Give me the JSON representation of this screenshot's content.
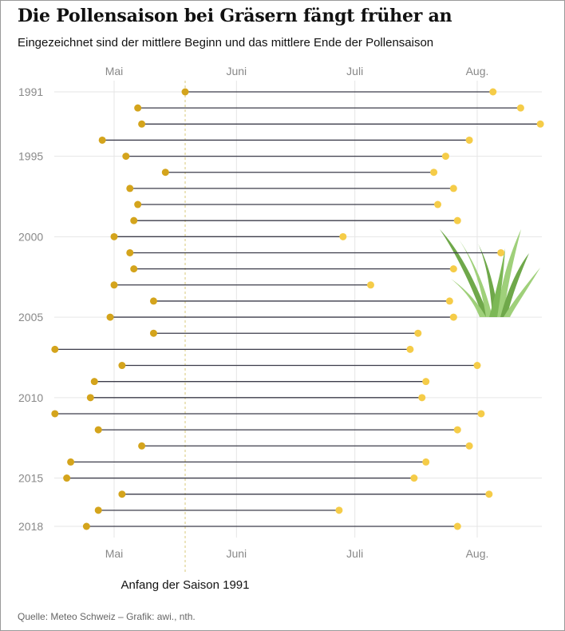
{
  "title": "Die Pollensaison bei Gräsern fängt früher an",
  "subtitle": "Eingezeichnet sind der mittlere Beginn und das mittlere Ende der Pollensaison",
  "source": "Quelle: Meteo Schweiz – Grafik: awi., nth.",
  "colors": {
    "start_dot": "#d4a41c",
    "end_dot": "#f5cc48",
    "line": "#3c3c4a",
    "grid": "#e6e6e6",
    "annotation_line": "#d9c97a",
    "grass_dark": "#6fa84a",
    "grass_light": "#9fd07a"
  },
  "icons": {
    "decoration": "grass-icon"
  },
  "chart_data": {
    "type": "dumbbell",
    "x_tick_labels": [
      "Mai",
      "Juni",
      "Juli",
      "Aug."
    ],
    "x_tick_dates": [
      "05-01",
      "06-01",
      "07-01",
      "08-01"
    ],
    "y_tick_labels": [
      "1991",
      "1995",
      "2000",
      "2005",
      "2010",
      "2015",
      "2018"
    ],
    "xlim": [
      "04-16",
      "08-17"
    ],
    "years": [
      1991,
      1992,
      1993,
      1994,
      1995,
      1996,
      1997,
      1998,
      1999,
      2000,
      2001,
      2002,
      2003,
      2004,
      2005,
      2006,
      2007,
      2008,
      2009,
      2010,
      2011,
      2012,
      2013,
      2014,
      2015,
      2016,
      2017,
      2018
    ],
    "start": [
      "05-19",
      "05-07",
      "05-08",
      "04-28",
      "05-04",
      "05-14",
      "05-05",
      "05-07",
      "05-06",
      "05-01",
      "05-05",
      "05-06",
      "05-01",
      "05-11",
      "04-30",
      "05-11",
      "04-16",
      "05-03",
      "04-26",
      "04-25",
      "04-16",
      "04-27",
      "05-08",
      "04-20",
      "04-19",
      "05-03",
      "04-27",
      "04-24"
    ],
    "end": [
      "08-05",
      "08-12",
      "08-17",
      "07-30",
      "07-24",
      "07-21",
      "07-26",
      "07-22",
      "07-27",
      "06-28",
      "08-07",
      "07-26",
      "07-05",
      "07-25",
      "07-26",
      "07-17",
      "07-15",
      "08-01",
      "07-19",
      "07-18",
      "08-02",
      "07-27",
      "07-30",
      "07-19",
      "07-16",
      "08-04",
      "06-27",
      "07-27"
    ],
    "annotations": [
      {
        "text": "Anfang der Saison 1991",
        "x": "05-19"
      }
    ],
    "grid": true
  }
}
